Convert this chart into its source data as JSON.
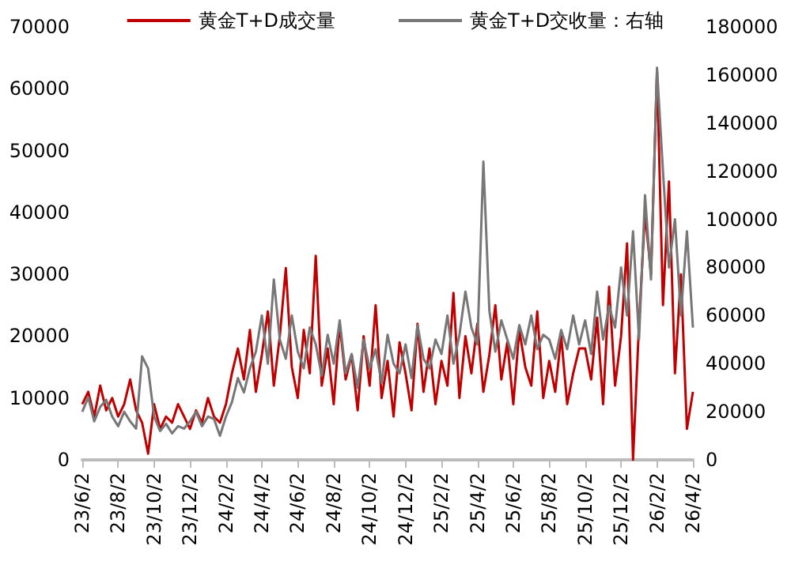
{
  "chart_data": {
    "type": "line",
    "legend": "top",
    "grid": false,
    "marker": "none",
    "line_style": "solid",
    "categories": [
      "23/6/2",
      null,
      null,
      null,
      null,
      null,
      "23/8/2",
      null,
      null,
      null,
      null,
      null,
      "23/10/2",
      null,
      null,
      null,
      null,
      null,
      "23/12/2",
      null,
      null,
      null,
      null,
      null,
      "24/2/2",
      null,
      null,
      null,
      null,
      null,
      "24/4/2",
      null,
      null,
      null,
      null,
      null,
      "24/6/2",
      null,
      null,
      null,
      null,
      null,
      "24/8/2",
      null,
      null,
      null,
      null,
      null,
      "24/10/2",
      null,
      null,
      null,
      null,
      null,
      "24/12/2",
      null,
      null,
      null,
      null,
      null,
      "25/2/2",
      null,
      null,
      null,
      null,
      null,
      "25/4/2",
      null,
      null,
      null,
      null,
      null,
      "25/6/2",
      null,
      null,
      null,
      null,
      null,
      "25/8/2",
      null,
      null,
      null,
      null,
      null,
      "25/10/2",
      null,
      null,
      null,
      null,
      null,
      "25/12/2",
      null,
      null,
      null,
      null,
      null,
      "26/2/2",
      null,
      null,
      null,
      null,
      null,
      "26/4/2"
    ],
    "ylim": [
      0,
      70000
    ],
    "yticks": [
      0,
      10000,
      20000,
      30000,
      40000,
      50000,
      60000,
      70000
    ],
    "y2lim": [
      0,
      180000
    ],
    "y2ticks": [
      0,
      20000,
      40000,
      60000,
      80000,
      100000,
      120000,
      140000,
      160000,
      180000
    ],
    "series": [
      {
        "name": "黄金T+D成交量",
        "color": "#c00000",
        "values": [
          9000,
          11000,
          7000,
          12000,
          8000,
          10000,
          7000,
          9000,
          13000,
          8000,
          6000,
          1000,
          9000,
          5000,
          7000,
          6000,
          9000,
          7000,
          5000,
          8000,
          6000,
          10000,
          7000,
          6000,
          9000,
          14000,
          18000,
          13000,
          21000,
          11000,
          17000,
          24000,
          12000,
          20000,
          31000,
          15000,
          10000,
          21000,
          14000,
          33000,
          12000,
          18000,
          9000,
          22000,
          13000,
          17000,
          8000,
          20000,
          12000,
          25000,
          10000,
          16000,
          7000,
          19000,
          14000,
          8000,
          22000,
          11000,
          18000,
          9000,
          16000,
          12000,
          27000,
          10000,
          20000,
          14000,
          22000,
          11000,
          17000,
          25000,
          13000,
          19000,
          9000,
          21000,
          15000,
          12000,
          24000,
          10000,
          16000,
          11000,
          20000,
          9000,
          14000,
          18000,
          18000,
          13000,
          23000,
          9000,
          28000,
          12000,
          20000,
          35000,
          0,
          22000,
          40000,
          30000,
          63000,
          25000,
          45000,
          14000,
          30000,
          5000,
          11000
        ]
      },
      {
        "name": "黄金T+D交收量：右轴",
        "color": "#777777",
        "axis": "y2",
        "values": [
          20000,
          26000,
          16000,
          22000,
          25000,
          18000,
          14000,
          20000,
          16000,
          13000,
          43000,
          38000,
          18000,
          12000,
          15000,
          11000,
          14000,
          13000,
          16000,
          20000,
          14000,
          18000,
          17000,
          10000,
          18000,
          24000,
          34000,
          28000,
          38000,
          45000,
          60000,
          40000,
          75000,
          50000,
          42000,
          60000,
          45000,
          38000,
          55000,
          48000,
          35000,
          52000,
          40000,
          58000,
          36000,
          44000,
          30000,
          50000,
          38000,
          46000,
          32000,
          52000,
          40000,
          36000,
          48000,
          34000,
          56000,
          42000,
          38000,
          50000,
          44000,
          60000,
          40000,
          52000,
          70000,
          55000,
          48000,
          124000,
          62000,
          45000,
          58000,
          50000,
          42000,
          56000,
          48000,
          60000,
          46000,
          52000,
          50000,
          42000,
          54000,
          46000,
          60000,
          48000,
          58000,
          44000,
          70000,
          50000,
          64000,
          55000,
          80000,
          60000,
          95000,
          50000,
          110000,
          75000,
          163000,
          120000,
          80000,
          100000,
          60000,
          95000,
          55000
        ]
      }
    ]
  }
}
